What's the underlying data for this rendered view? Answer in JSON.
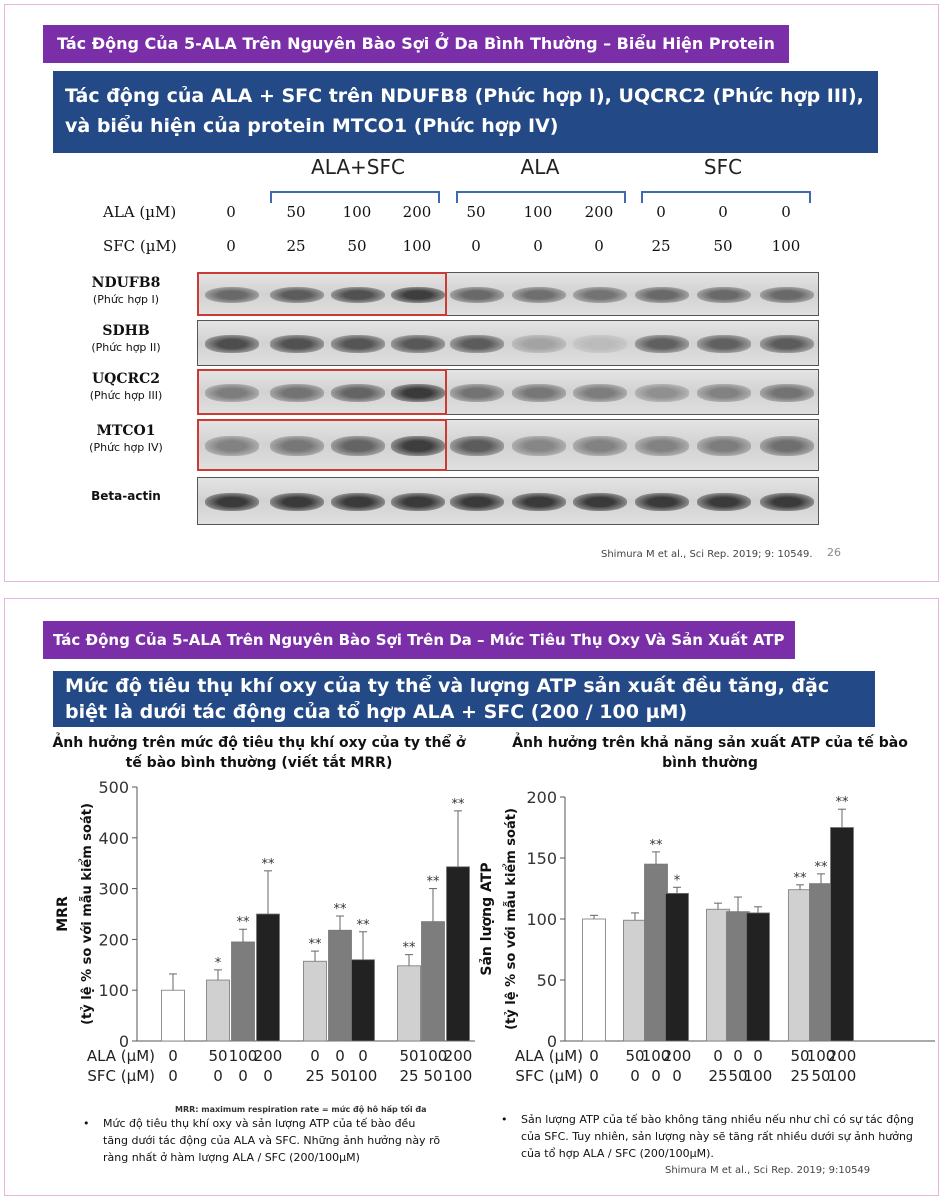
{
  "slide1": {
    "tag": "Tác Động Của 5-ALA Trên Nguyên Bào Sợi Ở Da Bình Thường – Biểu Hiện Protein",
    "banner": "Tác động của ALA + SFC trên NDUFB8 (Phức hợp I), UQCRC2 (Phức hợp III), và biểu hiện của protein MTCO1 (Phức hợp IV)",
    "groups": [
      "ALA+SFC",
      "ALA",
      "SFC"
    ],
    "ala_label": "ALA (µM)",
    "sfc_label": "SFC (µM)",
    "ala_values": [
      "0",
      "50",
      "100",
      "200",
      "50",
      "100",
      "200",
      "0",
      "0",
      "0"
    ],
    "sfc_values": [
      "0",
      "25",
      "50",
      "100",
      "0",
      "0",
      "0",
      "25",
      "50",
      "100"
    ],
    "proteins": [
      {
        "name": "NDUFB8",
        "sub": "(Phức hợp I)"
      },
      {
        "name": "SDHB",
        "sub": "(Phức hợp II)"
      },
      {
        "name": "UQCRC2",
        "sub": "(Phức hợp III)"
      },
      {
        "name": "MTCO1",
        "sub": "(Phức hợp IV)"
      },
      {
        "name": "Beta-actin",
        "sub": ""
      }
    ],
    "citation": "Shimura M et al., Sci Rep. 2019; 9: 10549.",
    "page_number": "26",
    "band_intensity": [
      [
        0.55,
        0.62,
        0.68,
        0.78,
        0.55,
        0.52,
        0.5,
        0.55,
        0.55,
        0.55
      ],
      [
        0.7,
        0.68,
        0.66,
        0.64,
        0.62,
        0.25,
        0.12,
        0.6,
        0.6,
        0.62
      ],
      [
        0.45,
        0.5,
        0.58,
        0.8,
        0.5,
        0.48,
        0.45,
        0.35,
        0.42,
        0.5
      ],
      [
        0.42,
        0.48,
        0.58,
        0.78,
        0.62,
        0.4,
        0.42,
        0.42,
        0.45,
        0.52
      ],
      [
        0.8,
        0.8,
        0.8,
        0.8,
        0.8,
        0.8,
        0.8,
        0.8,
        0.8,
        0.8
      ]
    ]
  },
  "slide2": {
    "tag": "Tác Động Của 5-ALA Trên Nguyên Bào Sợi Trên Da – Mức Tiêu Thụ Oxy Và Sản Xuất ATP",
    "banner": "Mức độ tiêu thụ khí oxy của ty thể và lượng ATP sản xuất đều tăng, đặc biệt là dưới tác động của tổ hợp ALA + SFC (200 / 100 µM)",
    "left_title": "Ảnh hưởng trên mức độ tiêu thụ khí oxy của ty thể ở tế bào bình thường (viết tắt MRR)",
    "right_title": "Ảnh hưởng trên khả năng sản xuất ATP của tế bào bình thường",
    "mrr_note": "MRR: maximum respiration rate = mức độ hô hấp tối đa",
    "left_note": "Mức độ tiêu thụ khí oxy và sản lượng ATP của tế bào đều tăng dưới tác động của ALA và SFC. Những ảnh hưởng này rõ ràng nhất ở hàm lượng ALA / SFC (200/100µM)",
    "right_note": "Sản lượng ATP của tế bào không tăng nhiều nếu như chỉ có sự tác động của SFC. Tuy nhiên, sản lượng này sẽ tăng rất nhiều dưới sự ảnh hưởng của tổ hợp ALA / SFC (200/100µM).",
    "citation": "Shimura M et al., Sci Rep. 2019; 9:10549",
    "bullet": "•"
  },
  "chart_data": [
    {
      "type": "bar",
      "title": "Ảnh hưởng trên mức độ tiêu thụ khí oxy của ty thể ở tế bào bình thường (viết tắt MRR)",
      "ylabel_main": "MRR",
      "ylabel_sub": "(tỷ lệ % so với mẫu kiểm soát)",
      "ylim": [
        0,
        500
      ],
      "yticks": [
        0,
        100,
        200,
        300,
        400,
        500
      ],
      "x_row_labels": [
        "ALA (µM)",
        "SFC (µM)"
      ],
      "ala": [
        "0",
        "50",
        "100",
        "200",
        "0",
        "0",
        "0",
        "50",
        "100",
        "200"
      ],
      "sfc": [
        "0",
        "0",
        "0",
        "0",
        "25",
        "50",
        "100",
        "25",
        "50",
        "100"
      ],
      "values": [
        100,
        120,
        195,
        250,
        157,
        218,
        160,
        148,
        235,
        343
      ],
      "errors": [
        32,
        20,
        25,
        85,
        20,
        28,
        55,
        22,
        65,
        110
      ],
      "significance": [
        "",
        "*",
        "**",
        "**",
        "**",
        "**",
        "**",
        "**",
        "**",
        "**"
      ],
      "groups": [
        [
          0
        ],
        [
          1,
          2,
          3
        ],
        [
          4,
          5,
          6
        ],
        [
          7,
          8,
          9
        ]
      ],
      "colors": [
        "#ffffff",
        "#d0d0d0",
        "#7d7d7d",
        "#222222",
        "#d0d0d0",
        "#7d7d7d",
        "#222222",
        "#d0d0d0",
        "#7d7d7d",
        "#222222"
      ],
      "grid": false
    },
    {
      "type": "bar",
      "title": "Ảnh hưởng trên khả năng sản xuất ATP của tế bào bình thường",
      "ylabel_main": "Sản lượng ATP",
      "ylabel_sub": "(tỷ lệ % so với mẫu kiểm soát)",
      "ylim": [
        0,
        200
      ],
      "yticks": [
        0,
        50,
        100,
        150,
        200
      ],
      "x_row_labels": [
        "ALA (µM)",
        "SFC (µM)"
      ],
      "ala": [
        "0",
        "50",
        "100",
        "200",
        "0",
        "0",
        "0",
        "50",
        "100",
        "200"
      ],
      "sfc": [
        "0",
        "0",
        "0",
        "0",
        "25",
        "50",
        "100",
        "25",
        "50",
        "100"
      ],
      "values": [
        100,
        99,
        145,
        121,
        108,
        106,
        105,
        124,
        129,
        175
      ],
      "errors": [
        3,
        6,
        10,
        5,
        5,
        12,
        5,
        4,
        8,
        15
      ],
      "significance": [
        "",
        "",
        "**",
        "*",
        "",
        "",
        "",
        "**",
        "**",
        "**"
      ],
      "groups": [
        [
          0
        ],
        [
          1,
          2,
          3
        ],
        [
          4,
          5,
          6
        ],
        [
          7,
          8,
          9
        ]
      ],
      "colors": [
        "#ffffff",
        "#d0d0d0",
        "#7d7d7d",
        "#222222",
        "#d0d0d0",
        "#7d7d7d",
        "#222222",
        "#d0d0d0",
        "#7d7d7d",
        "#222222"
      ],
      "grid": false
    }
  ]
}
